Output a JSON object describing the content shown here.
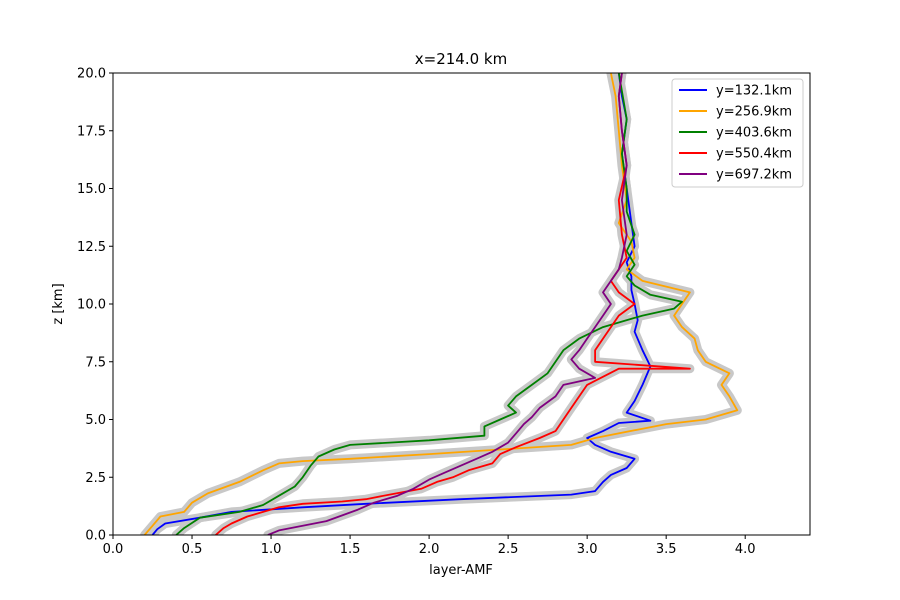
{
  "chart_data": {
    "type": "line",
    "title": "x=214.0 km",
    "xlabel": "layer-AMF",
    "ylabel": "z [km]",
    "xlim": [
      0.0,
      4.41
    ],
    "ylim": [
      0.0,
      20.0
    ],
    "xticks": [
      "0.0",
      "0.5",
      "1.0",
      "1.5",
      "2.0",
      "2.5",
      "3.0",
      "3.5",
      "4.0"
    ],
    "yticks": [
      "0.0",
      "2.5",
      "5.0",
      "7.5",
      "10.0",
      "12.5",
      "15.0",
      "17.5",
      "20.0"
    ],
    "grid": false,
    "legend_position": "top-right",
    "uncertainty_band_color": "#c8c8c8",
    "series": [
      {
        "name": "y=132.1km",
        "color": "#0000ff",
        "points": [
          [
            0.25,
            0
          ],
          [
            0.28,
            0.25
          ],
          [
            0.33,
            0.5
          ],
          [
            0.55,
            0.75
          ],
          [
            0.75,
            1.0
          ],
          [
            1.2,
            1.2
          ],
          [
            1.6,
            1.35
          ],
          [
            2.2,
            1.55
          ],
          [
            2.9,
            1.75
          ],
          [
            3.05,
            1.9
          ],
          [
            3.1,
            2.3
          ],
          [
            3.15,
            2.6
          ],
          [
            3.25,
            2.9
          ],
          [
            3.3,
            3.3
          ],
          [
            3.15,
            3.6
          ],
          [
            3.05,
            3.9
          ],
          [
            3.0,
            4.2
          ],
          [
            3.1,
            4.5
          ],
          [
            3.2,
            4.85
          ],
          [
            3.4,
            4.95
          ],
          [
            3.25,
            5.3
          ],
          [
            3.3,
            5.8
          ],
          [
            3.35,
            6.5
          ],
          [
            3.4,
            7.3
          ],
          [
            3.35,
            8.0
          ],
          [
            3.3,
            8.8
          ],
          [
            3.32,
            9.3
          ],
          [
            3.3,
            10.0
          ],
          [
            3.28,
            10.6
          ],
          [
            3.28,
            11.2
          ],
          [
            3.25,
            11.8
          ],
          [
            3.3,
            12.5
          ],
          [
            3.28,
            13.5
          ],
          [
            3.25,
            15.0
          ],
          [
            3.22,
            16.5
          ],
          [
            3.25,
            18.0
          ],
          [
            3.22,
            19.0
          ],
          [
            3.2,
            20.0
          ]
        ]
      },
      {
        "name": "y=256.9km",
        "color": "#ffa500",
        "points": [
          [
            0.2,
            0
          ],
          [
            0.25,
            0.4
          ],
          [
            0.3,
            0.8
          ],
          [
            0.45,
            1.0
          ],
          [
            0.5,
            1.4
          ],
          [
            0.6,
            1.8
          ],
          [
            0.8,
            2.3
          ],
          [
            0.95,
            2.8
          ],
          [
            1.05,
            3.1
          ],
          [
            1.2,
            3.2
          ],
          [
            1.5,
            3.3
          ],
          [
            2.0,
            3.5
          ],
          [
            2.45,
            3.7
          ],
          [
            2.9,
            3.9
          ],
          [
            3.05,
            4.2
          ],
          [
            3.35,
            4.6
          ],
          [
            3.5,
            4.8
          ],
          [
            3.75,
            5.0
          ],
          [
            3.95,
            5.4
          ],
          [
            3.9,
            6.0
          ],
          [
            3.85,
            6.5
          ],
          [
            3.9,
            7.0
          ],
          [
            3.75,
            7.5
          ],
          [
            3.7,
            8.0
          ],
          [
            3.68,
            8.5
          ],
          [
            3.6,
            9.0
          ],
          [
            3.55,
            9.5
          ],
          [
            3.6,
            10.0
          ],
          [
            3.65,
            10.5
          ],
          [
            3.35,
            11.0
          ],
          [
            3.25,
            11.5
          ],
          [
            3.3,
            12.0
          ],
          [
            3.28,
            12.7
          ],
          [
            3.2,
            13.5
          ],
          [
            3.25,
            14.5
          ],
          [
            3.22,
            16.0
          ],
          [
            3.2,
            17.5
          ],
          [
            3.18,
            19.0
          ],
          [
            3.15,
            20.0
          ]
        ]
      },
      {
        "name": "y=403.6km",
        "color": "#008000",
        "points": [
          [
            0.4,
            0
          ],
          [
            0.45,
            0.3
          ],
          [
            0.55,
            0.75
          ],
          [
            0.8,
            1.0
          ],
          [
            0.95,
            1.3
          ],
          [
            1.05,
            1.7
          ],
          [
            1.15,
            2.1
          ],
          [
            1.2,
            2.5
          ],
          [
            1.25,
            3.0
          ],
          [
            1.3,
            3.4
          ],
          [
            1.4,
            3.7
          ],
          [
            1.5,
            3.9
          ],
          [
            1.75,
            4.0
          ],
          [
            2.0,
            4.1
          ],
          [
            2.35,
            4.3
          ],
          [
            2.35,
            4.7
          ],
          [
            2.45,
            5.0
          ],
          [
            2.55,
            5.3
          ],
          [
            2.5,
            5.6
          ],
          [
            2.55,
            6.0
          ],
          [
            2.65,
            6.5
          ],
          [
            2.75,
            7.0
          ],
          [
            2.8,
            7.5
          ],
          [
            2.85,
            8.0
          ],
          [
            2.95,
            8.5
          ],
          [
            3.1,
            9.0
          ],
          [
            3.35,
            9.5
          ],
          [
            3.55,
            9.8
          ],
          [
            3.6,
            10.1
          ],
          [
            3.4,
            10.4
          ],
          [
            3.3,
            10.8
          ],
          [
            3.25,
            11.2
          ],
          [
            3.3,
            11.7
          ],
          [
            3.25,
            12.3
          ],
          [
            3.3,
            13.0
          ],
          [
            3.25,
            14.0
          ],
          [
            3.25,
            15.0
          ],
          [
            3.22,
            16.5
          ],
          [
            3.25,
            18.0
          ],
          [
            3.2,
            20.0
          ]
        ]
      },
      {
        "name": "y=550.4km",
        "color": "#ff0000",
        "points": [
          [
            0.65,
            0
          ],
          [
            0.7,
            0.3
          ],
          [
            0.75,
            0.5
          ],
          [
            0.85,
            0.8
          ],
          [
            0.95,
            1.0
          ],
          [
            1.05,
            1.2
          ],
          [
            1.2,
            1.35
          ],
          [
            1.45,
            1.45
          ],
          [
            1.6,
            1.55
          ],
          [
            1.75,
            1.75
          ],
          [
            1.95,
            2.0
          ],
          [
            2.05,
            2.3
          ],
          [
            2.15,
            2.5
          ],
          [
            2.25,
            2.8
          ],
          [
            2.4,
            3.1
          ],
          [
            2.45,
            3.5
          ],
          [
            2.55,
            3.8
          ],
          [
            2.7,
            4.2
          ],
          [
            2.8,
            4.5
          ],
          [
            2.85,
            5.0
          ],
          [
            2.9,
            5.5
          ],
          [
            2.95,
            6.0
          ],
          [
            3.0,
            6.5
          ],
          [
            3.2,
            7.2
          ],
          [
            3.65,
            7.2
          ],
          [
            3.05,
            7.5
          ],
          [
            3.05,
            8.0
          ],
          [
            3.1,
            8.5
          ],
          [
            3.15,
            9.0
          ],
          [
            3.2,
            9.5
          ],
          [
            3.3,
            10.0
          ],
          [
            3.2,
            10.5
          ],
          [
            3.15,
            11.0
          ],
          [
            3.2,
            11.5
          ],
          [
            3.25,
            12.0
          ],
          [
            3.22,
            13.0
          ],
          [
            3.2,
            14.5
          ],
          [
            3.25,
            16.0
          ],
          [
            3.22,
            17.5
          ],
          [
            3.2,
            19.0
          ],
          [
            3.22,
            20.0
          ]
        ]
      },
      {
        "name": "y=697.2km",
        "color": "#800080",
        "points": [
          [
            0.98,
            0
          ],
          [
            1.05,
            0.2
          ],
          [
            1.2,
            0.4
          ],
          [
            1.35,
            0.6
          ],
          [
            1.45,
            0.85
          ],
          [
            1.55,
            1.1
          ],
          [
            1.65,
            1.4
          ],
          [
            1.8,
            1.7
          ],
          [
            1.9,
            2.0
          ],
          [
            2.0,
            2.4
          ],
          [
            2.1,
            2.7
          ],
          [
            2.2,
            3.0
          ],
          [
            2.3,
            3.3
          ],
          [
            2.4,
            3.6
          ],
          [
            2.5,
            4.0
          ],
          [
            2.55,
            4.4
          ],
          [
            2.6,
            4.8
          ],
          [
            2.65,
            5.1
          ],
          [
            2.7,
            5.5
          ],
          [
            2.8,
            6.0
          ],
          [
            2.85,
            6.5
          ],
          [
            3.05,
            6.8
          ],
          [
            2.95,
            7.2
          ],
          [
            2.9,
            7.6
          ],
          [
            2.95,
            8.0
          ],
          [
            3.0,
            8.5
          ],
          [
            3.05,
            9.0
          ],
          [
            3.1,
            9.5
          ],
          [
            3.15,
            10.0
          ],
          [
            3.1,
            10.5
          ],
          [
            3.15,
            11.0
          ],
          [
            3.2,
            11.5
          ],
          [
            3.22,
            12.0
          ],
          [
            3.25,
            13.0
          ],
          [
            3.22,
            14.5
          ],
          [
            3.25,
            16.0
          ],
          [
            3.22,
            17.5
          ],
          [
            3.2,
            19.0
          ],
          [
            3.22,
            20.0
          ]
        ]
      }
    ]
  }
}
